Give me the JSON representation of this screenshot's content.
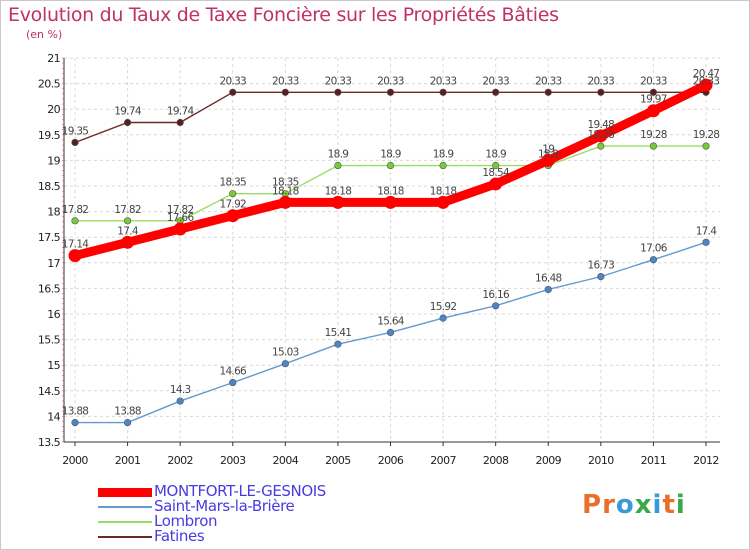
{
  "header": {
    "title": "Evolution du Taux de Taxe Foncière sur les Propriétés Bâties",
    "subtitle": "(en %)"
  },
  "logo": {
    "text": "Proxiti",
    "colors": [
      "#e8702a",
      "#e8702a",
      "#3a9ad9",
      "#3aa848",
      "#3a9ad9",
      "#e8702a",
      "#3aa848"
    ]
  },
  "chart_data": {
    "type": "line",
    "title": "Evolution du Taux de Taxe Foncière sur les Propriétés Bâties",
    "ylabel": "(en %)",
    "xlabel": "",
    "ylim": [
      13.5,
      21
    ],
    "yticks": [
      13.5,
      14,
      14.5,
      15,
      15.5,
      16,
      16.5,
      17,
      17.5,
      18,
      18.5,
      19,
      19.5,
      20,
      20.5,
      21
    ],
    "x": [
      2000,
      2001,
      2002,
      2003,
      2004,
      2005,
      2006,
      2007,
      2008,
      2009,
      2010,
      2011,
      2012
    ],
    "grid": true,
    "series": [
      {
        "name": "MONTFORT-LE-GESNOIS",
        "color": "#ff0000",
        "marker_color": "#ff0000",
        "values": [
          17.14,
          17.4,
          17.66,
          17.92,
          18.18,
          18.18,
          18.18,
          18.18,
          18.54,
          19,
          19.48,
          19.97,
          20.47
        ]
      },
      {
        "name": "Saint-Mars-la-Brière",
        "color": "#6699cc",
        "marker_color": "#4a86c8",
        "values": [
          13.88,
          13.88,
          14.3,
          14.66,
          15.03,
          15.41,
          15.64,
          15.92,
          16.16,
          16.48,
          16.73,
          17.06,
          17.4
        ]
      },
      {
        "name": "Lombron",
        "color": "#99dd66",
        "marker_color": "#77cc33",
        "values": [
          17.82,
          17.82,
          17.82,
          18.35,
          18.35,
          18.9,
          18.9,
          18.9,
          18.9,
          18.9,
          19.28,
          19.28,
          19.28
        ]
      },
      {
        "name": "Fatines",
        "color": "#6b2a2a",
        "marker_color": "#5a1e1e",
        "values": [
          19.35,
          19.74,
          19.74,
          20.33,
          20.33,
          20.33,
          20.33,
          20.33,
          20.33,
          20.33,
          20.33,
          20.33,
          20.33
        ]
      }
    ]
  }
}
